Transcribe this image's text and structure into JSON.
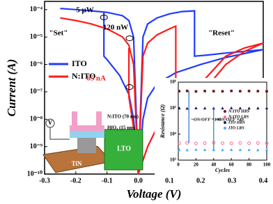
{
  "chart_data": [
    {
      "type": "line",
      "xlabel": "Voltage (V)",
      "ylabel": "Current (A)",
      "yscale": "log",
      "xlim": [
        -0.3,
        0.4
      ],
      "xticks": [
        -0.3,
        -0.2,
        -0.1,
        {
          "value": 0,
          "label": "0.0"
        },
        0.1,
        0.2,
        0.3,
        0.4
      ],
      "ylim": [
        1e-10,
        0.0002
      ],
      "yticks": [
        {
          "value": 1e-10,
          "label": "10⁻¹⁰"
        },
        {
          "value": 1e-09,
          "label": "10⁻⁹"
        },
        {
          "value": 1e-08,
          "label": "10⁻⁸"
        },
        {
          "value": 1e-07,
          "label": "10⁻⁷"
        },
        {
          "value": 1e-06,
          "label": "10⁻⁶"
        },
        {
          "value": 1e-05,
          "label": "10⁻⁵"
        },
        {
          "value": 0.0001,
          "label": "10⁻⁴"
        }
      ],
      "annotations": [
        "\"Set\"",
        "\"Reset\"",
        "5 μW",
        "120 nW",
        "65 nA"
      ],
      "series": [
        {
          "name": "ITO",
          "color": "#1f3bff",
          "x": [
            -0.25,
            -0.2,
            -0.15,
            -0.1,
            -0.05,
            -0.03,
            -0.015,
            0,
            0.015,
            0.03,
            0.06,
            0.1,
            0.14,
            0.18,
            0.18,
            0.22,
            0.28,
            0.34,
            0.4,
            0.34,
            0.28,
            0.2,
            0.12,
            0.06,
            0.03,
            0.015,
            0,
            -0.015,
            -0.03,
            -0.06,
            -0.1,
            -0.11,
            -0.11
          ],
          "values": [
            0.00011,
            0.0001,
            9e-05,
            8e-05,
            6e-05,
            4e-05,
            1e-05,
            1e-10,
            1e-05,
            3e-05,
            5e-05,
            7e-05,
            8.5e-05,
            9e-05,
            2e-06,
            2.2e-06,
            2.6e-06,
            3e-06,
            3.5e-06,
            2.5e-06,
            1.8e-06,
            1e-06,
            5e-07,
            2e-07,
            6e-08,
            1e-08,
            1e-10,
            1e-08,
            8e-08,
            4e-07,
            1.5e-06,
            2e-06,
            8e-05
          ]
        },
        {
          "name": "N:ITO",
          "color": "#ff1a1a",
          "x": [
            -0.25,
            -0.2,
            -0.15,
            -0.1,
            -0.05,
            -0.03,
            -0.015,
            0,
            0.015,
            0.03,
            0.06,
            0.1,
            0.12,
            0.12,
            0.15,
            0.2,
            0.28,
            0.34,
            0.4,
            0.34,
            0.28,
            0.2,
            0.12,
            0.06,
            0.03,
            0,
            -0.015,
            -0.03,
            -0.03
          ],
          "values": [
            5e-05,
            4e-05,
            3e-05,
            2e-05,
            1e-05,
            5e-06,
            1e-06,
            1e-10,
            2e-06,
            6e-06,
            1.2e-05,
            2e-05,
            2.5e-05,
            6e-09,
            5e-08,
            2e-07,
            2e-06,
            4e-06,
            6e-06,
            3e-06,
            1e-06,
            8e-08,
            2e-08,
            5e-09,
            1e-09,
            1e-10,
            5e-09,
            6.5e-08,
            4e-06
          ]
        }
      ]
    },
    {
      "type": "scatter",
      "xlabel": "Cycles",
      "ylabel": "Resistance (Ω)",
      "yscale": "log",
      "xlim": [
        0,
        100
      ],
      "xticks": [
        0,
        20,
        40,
        60,
        80,
        100
      ],
      "ylim": [
        1000,
        1000000
      ],
      "yticks": [
        {
          "value": 1000,
          "label": "10³"
        },
        {
          "value": 10000,
          "label": "10⁴"
        },
        {
          "value": 100000,
          "label": "10⁵"
        },
        {
          "value": 1000000,
          "label": "10⁶"
        }
      ],
      "annotations": [
        "~ON/OFF =100",
        "~ON/OFF =40"
      ],
      "x": [
        1,
        10,
        20,
        30,
        40,
        50,
        60,
        70,
        80,
        90,
        100
      ],
      "series": [
        {
          "name": "N:ITO HRS",
          "color": "#6b1b1b",
          "marker": "square",
          "values": [
            450000,
            460000,
            440000,
            455000,
            450000,
            445000,
            460000,
            450000,
            455000,
            450000,
            445000
          ]
        },
        {
          "name": "N:ITO LRS",
          "color": "#ff6f9a",
          "marker": "circle",
          "values": [
            4500,
            4600,
            4400,
            4500,
            4700,
            4500,
            4400,
            4600,
            4500,
            4550,
            4500
          ]
        },
        {
          "name": "ITO HRS",
          "color": "#1a1a66",
          "marker": "triangle",
          "values": [
            100000,
            98000,
            101000,
            100000,
            99000,
            100000,
            102000,
            100000,
            99000,
            100000,
            101000
          ]
        },
        {
          "name": "ITO LRS",
          "color": "#4da6ff",
          "marker": "triangle",
          "values": [
            2500,
            2450,
            2550,
            2500,
            2500,
            2480,
            2520,
            2500,
            2500,
            2460,
            2500
          ]
        }
      ]
    }
  ],
  "schematic": {
    "labels": [
      "V",
      "TiN",
      "LTO",
      "N:ITO (70 nm)",
      "HfO₂ (15 nm)"
    ]
  }
}
